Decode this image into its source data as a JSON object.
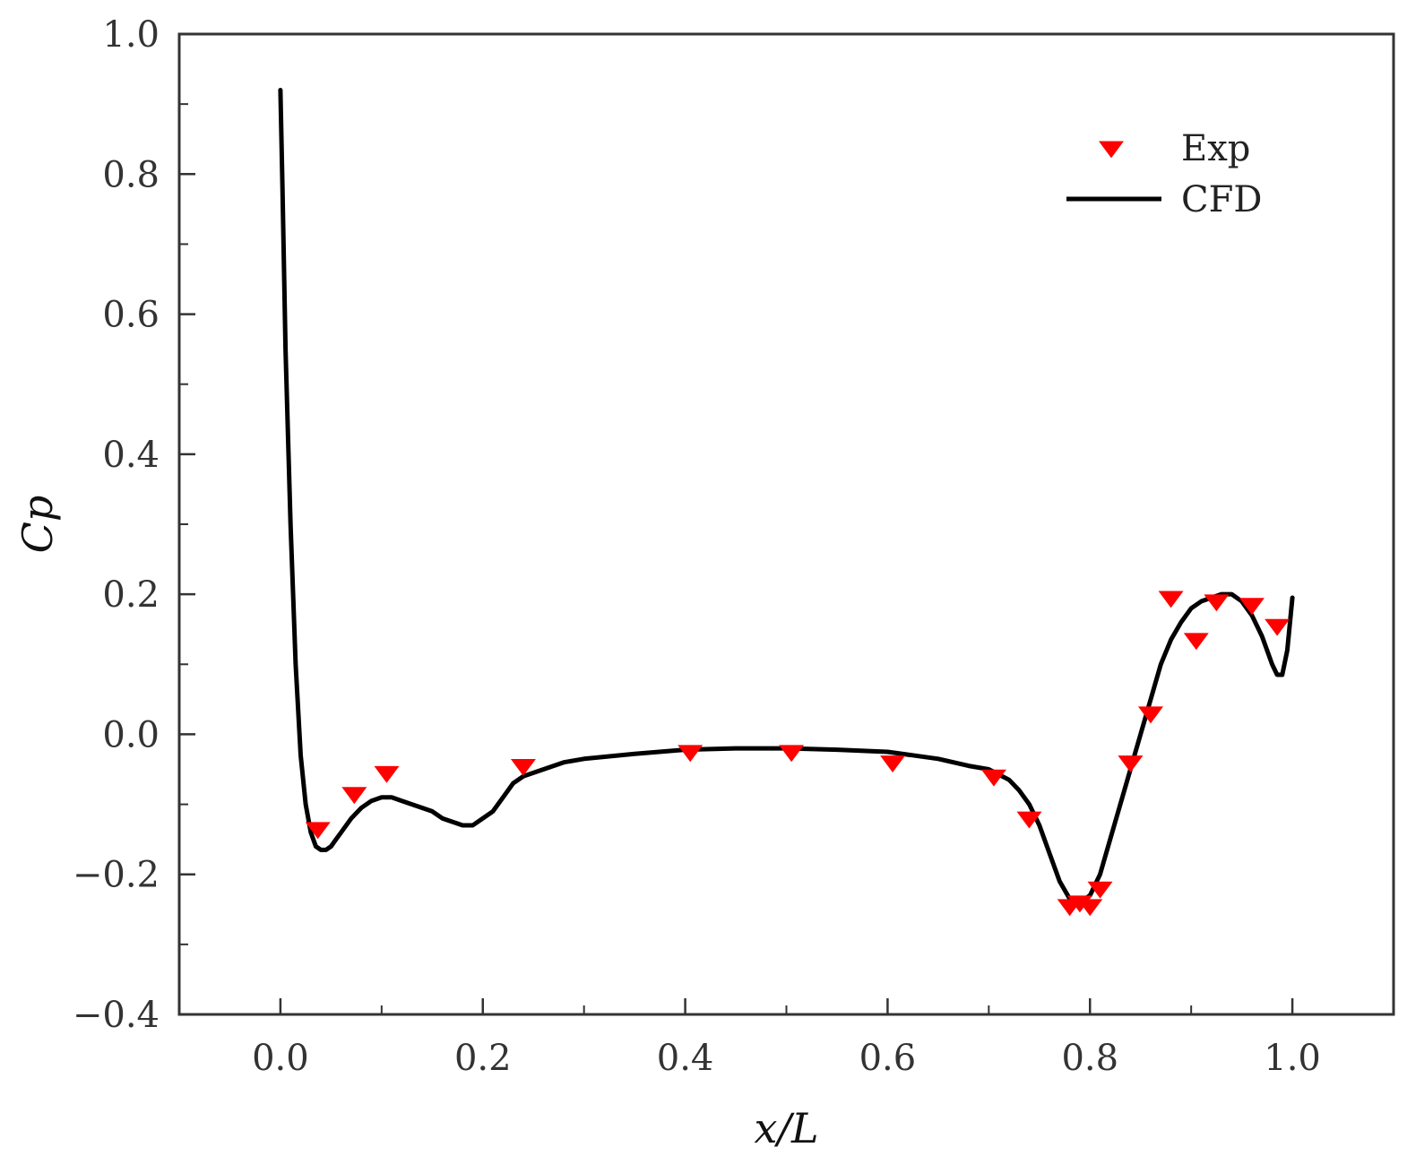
{
  "chart_data": {
    "type": "scatter",
    "title": "",
    "xlabel": "x/L",
    "ylabel": "Cp",
    "xlim": [
      -0.1,
      1.1
    ],
    "ylim": [
      -0.4,
      1.0
    ],
    "x_ticks": [
      0.0,
      0.2,
      0.4,
      0.6,
      0.8,
      1.0
    ],
    "x_tick_labels": [
      "0.0",
      "0.2",
      "0.4",
      "0.6",
      "0.8",
      "1.0"
    ],
    "y_ticks": [
      -0.4,
      -0.2,
      0.0,
      0.2,
      0.4,
      0.6,
      0.8,
      1.0
    ],
    "y_tick_labels": [
      "−0.4",
      "−0.2",
      "0.0",
      "0.2",
      "0.4",
      "0.6",
      "0.8",
      "1.0"
    ],
    "grid": false,
    "legend_position": "top-right",
    "series": [
      {
        "name": "Exp",
        "kind": "scatter",
        "marker": "triangle-down",
        "color": "#ff0000",
        "x": [
          0.037,
          0.073,
          0.105,
          0.24,
          0.405,
          0.505,
          0.605,
          0.705,
          0.74,
          0.78,
          0.79,
          0.8,
          0.81,
          0.84,
          0.86,
          0.88,
          0.905,
          0.925,
          0.96,
          0.985
        ],
        "y": [
          -0.135,
          -0.085,
          -0.055,
          -0.045,
          -0.025,
          -0.025,
          -0.04,
          -0.06,
          -0.12,
          -0.245,
          -0.24,
          -0.245,
          -0.22,
          -0.04,
          0.03,
          0.195,
          0.135,
          0.19,
          0.185,
          0.155
        ]
      },
      {
        "name": "CFD",
        "kind": "line",
        "color": "#000000",
        "x": [
          0.0,
          0.002,
          0.005,
          0.01,
          0.015,
          0.02,
          0.025,
          0.03,
          0.035,
          0.04,
          0.045,
          0.05,
          0.055,
          0.06,
          0.07,
          0.08,
          0.09,
          0.1,
          0.11,
          0.12,
          0.13,
          0.14,
          0.15,
          0.16,
          0.17,
          0.18,
          0.19,
          0.2,
          0.21,
          0.22,
          0.23,
          0.24,
          0.26,
          0.28,
          0.3,
          0.35,
          0.4,
          0.45,
          0.5,
          0.55,
          0.6,
          0.65,
          0.68,
          0.7,
          0.72,
          0.73,
          0.74,
          0.75,
          0.76,
          0.77,
          0.78,
          0.79,
          0.8,
          0.81,
          0.82,
          0.83,
          0.84,
          0.85,
          0.86,
          0.87,
          0.88,
          0.89,
          0.9,
          0.91,
          0.92,
          0.93,
          0.94,
          0.95,
          0.96,
          0.97,
          0.98,
          0.985,
          0.99,
          0.995,
          1.0
        ],
        "y": [
          0.92,
          0.78,
          0.55,
          0.3,
          0.1,
          -0.03,
          -0.1,
          -0.14,
          -0.16,
          -0.165,
          -0.165,
          -0.16,
          -0.15,
          -0.14,
          -0.12,
          -0.105,
          -0.095,
          -0.09,
          -0.09,
          -0.095,
          -0.1,
          -0.105,
          -0.11,
          -0.12,
          -0.125,
          -0.13,
          -0.13,
          -0.12,
          -0.11,
          -0.09,
          -0.07,
          -0.06,
          -0.05,
          -0.04,
          -0.035,
          -0.028,
          -0.022,
          -0.02,
          -0.02,
          -0.022,
          -0.025,
          -0.035,
          -0.045,
          -0.05,
          -0.065,
          -0.08,
          -0.1,
          -0.13,
          -0.17,
          -0.21,
          -0.235,
          -0.24,
          -0.23,
          -0.2,
          -0.15,
          -0.1,
          -0.05,
          0.0,
          0.05,
          0.1,
          0.135,
          0.16,
          0.18,
          0.19,
          0.195,
          0.2,
          0.2,
          0.19,
          0.17,
          0.14,
          0.1,
          0.085,
          0.085,
          0.12,
          0.195
        ]
      }
    ]
  }
}
